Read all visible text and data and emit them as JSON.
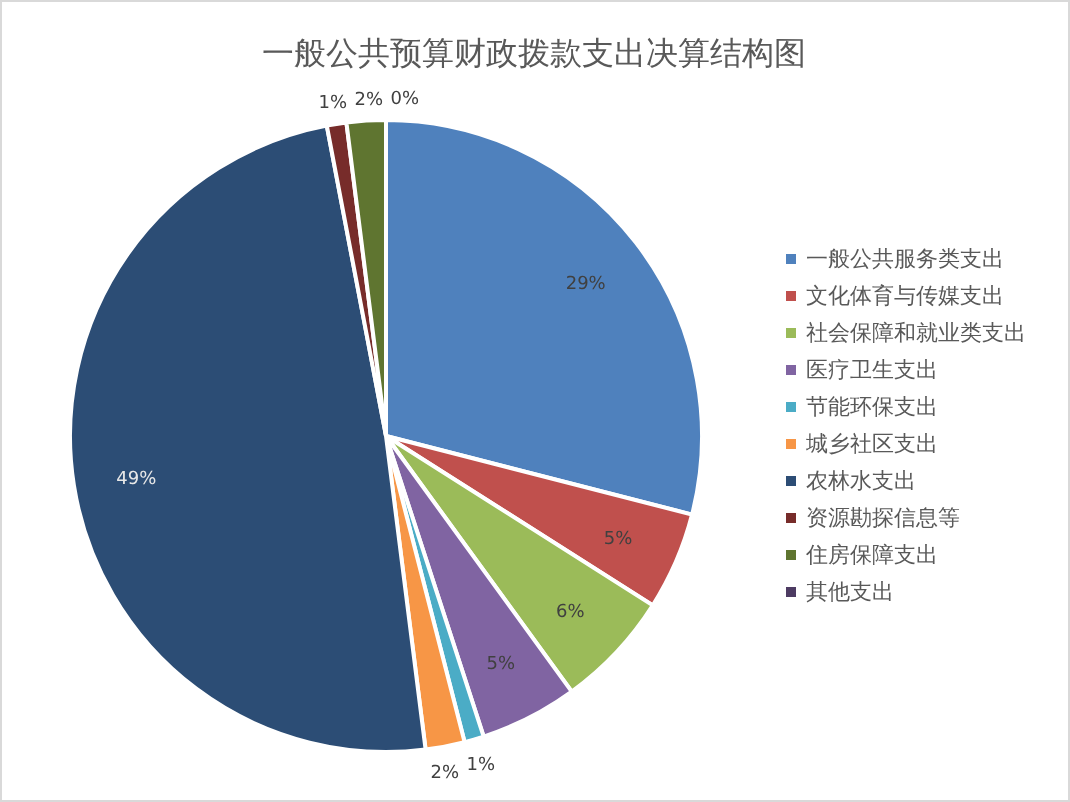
{
  "chart_data": {
    "type": "pie",
    "title": "一般公共预算财政拨款支出决算结构图",
    "categories": [
      "一般公共服务类支出",
      "文化体育与传媒支出",
      "社会保障和就业类支出",
      "医疗卫生支出",
      "节能环保支出",
      "城乡社区支出",
      "农林水支出",
      "资源勘探信息等",
      "住房保障支出",
      "其他支出"
    ],
    "values": [
      29,
      5,
      6,
      5,
      1,
      2,
      49,
      1,
      2,
      0
    ],
    "colors": [
      "#4f81bd",
      "#c0504d",
      "#9bbb59",
      "#8064a2",
      "#4bacc6",
      "#f79646",
      "#2c4d75",
      "#772c2a",
      "#5f7530",
      "#4d3b62"
    ],
    "value_labels": [
      "29%",
      "5%",
      "6%",
      "5%",
      "1%",
      "2%",
      "49%",
      "1%",
      "2%",
      "0%"
    ],
    "legend": "right"
  }
}
